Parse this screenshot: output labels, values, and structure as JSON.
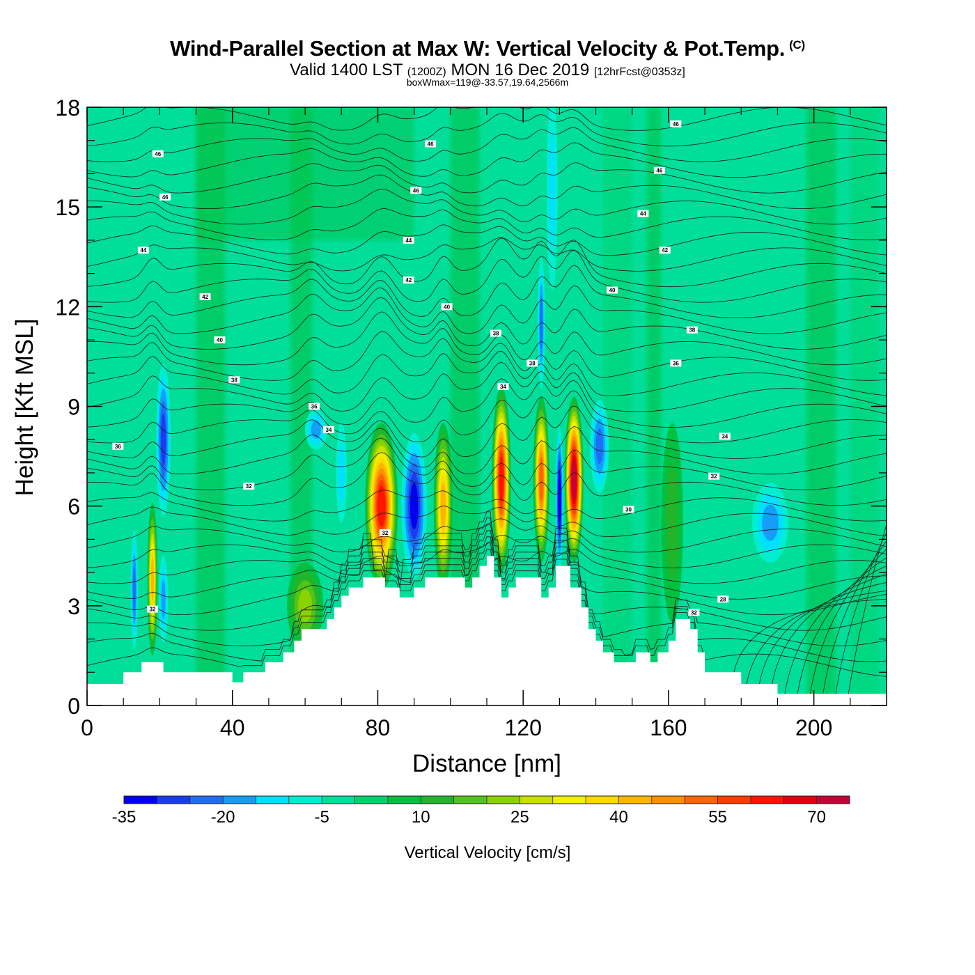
{
  "title": {
    "main": "Wind-Parallel Section at Max W: Vertical Velocity & Pot.Temp.",
    "copyright": "(C)",
    "valid_a": "Valid 1400 LST",
    "valid_z": "(1200Z)",
    "valid_b": "MON 16 Dec 2019",
    "valid_fcst": "[12hrFcst@0353z]",
    "box": "boxWmax=119@-33.57,19.64,2566m"
  },
  "chart_data": {
    "type": "heatmap",
    "description_fields": "filled contours of vertical velocity with overlaid potential temperature contour lines",
    "xlabel": "Distance [nm]",
    "ylabel": "Height [Kft MSL]",
    "xlim": [
      0,
      220
    ],
    "ylim": [
      0,
      18
    ],
    "x_ticks": [
      "0",
      "40",
      "80",
      "120",
      "160",
      "200"
    ],
    "y_ticks": [
      "0",
      "3",
      "6",
      "9",
      "12",
      "15",
      "18"
    ],
    "colorbar": {
      "label": "Vertical Velocity [cm/s]",
      "min": -35,
      "step": 5,
      "tick_labels": [
        "-35",
        "-20",
        "-5",
        "10",
        "25",
        "40",
        "55",
        "70"
      ],
      "colors": [
        "#0000ee",
        "#1a3cf0",
        "#1e6ef5",
        "#149ef7",
        "#00e0ff",
        "#00eed0",
        "#00e09a",
        "#00d26e",
        "#00c040",
        "#22b52c",
        "#50c41a",
        "#8ad200",
        "#c8e000",
        "#f0f000",
        "#ffd800",
        "#ffb400",
        "#ff9000",
        "#ff6400",
        "#ff3c00",
        "#ff1400",
        "#e00010",
        "#c80038"
      ]
    },
    "terrain": [
      [
        0,
        0.65
      ],
      [
        10,
        0.65
      ],
      [
        10,
        1
      ],
      [
        15,
        1
      ],
      [
        15,
        1.3
      ],
      [
        21,
        1.3
      ],
      [
        21,
        1
      ],
      [
        40,
        1
      ],
      [
        40,
        0.7
      ],
      [
        43,
        0.7
      ],
      [
        43,
        1
      ],
      [
        49,
        1
      ],
      [
        49,
        1.3
      ],
      [
        54,
        1.3
      ],
      [
        54,
        1.6
      ],
      [
        57,
        1.6
      ],
      [
        57,
        1.95
      ],
      [
        59,
        1.95
      ],
      [
        59,
        2.3
      ],
      [
        66,
        2.3
      ],
      [
        66,
        2.6
      ],
      [
        68,
        2.6
      ],
      [
        68,
        2.95
      ],
      [
        70,
        2.95
      ],
      [
        70,
        3.3
      ],
      [
        72,
        3.3
      ],
      [
        72,
        3.55
      ],
      [
        76,
        3.55
      ],
      [
        76,
        3.85
      ],
      [
        82,
        3.85
      ],
      [
        82,
        3.55
      ],
      [
        86,
        3.55
      ],
      [
        86,
        3.25
      ],
      [
        90,
        3.25
      ],
      [
        90,
        3.55
      ],
      [
        93,
        3.55
      ],
      [
        93,
        3.85
      ],
      [
        104,
        3.85
      ],
      [
        104,
        3.55
      ],
      [
        106,
        3.55
      ],
      [
        106,
        3.85
      ],
      [
        108,
        3.85
      ],
      [
        108,
        4.2
      ],
      [
        110,
        4.2
      ],
      [
        110,
        4.5
      ],
      [
        112,
        4.5
      ],
      [
        112,
        3.85
      ],
      [
        114,
        3.85
      ],
      [
        114,
        3.25
      ],
      [
        116,
        3.25
      ],
      [
        116,
        3.55
      ],
      [
        118,
        3.55
      ],
      [
        118,
        3.85
      ],
      [
        125,
        3.85
      ],
      [
        125,
        3.25
      ],
      [
        127,
        3.25
      ],
      [
        127,
        3.55
      ],
      [
        129,
        3.55
      ],
      [
        129,
        4.2
      ],
      [
        133,
        4.2
      ],
      [
        133,
        3.55
      ],
      [
        136,
        3.55
      ],
      [
        136,
        2.95
      ],
      [
        138,
        2.95
      ],
      [
        138,
        2.3
      ],
      [
        140,
        2.3
      ],
      [
        140,
        1.95
      ],
      [
        142,
        1.95
      ],
      [
        142,
        1.6
      ],
      [
        145,
        1.6
      ],
      [
        145,
        1.3
      ],
      [
        151,
        1.3
      ],
      [
        151,
        1.6
      ],
      [
        155,
        1.6
      ],
      [
        155,
        1.3
      ],
      [
        157,
        1.3
      ],
      [
        157,
        1.6
      ],
      [
        160,
        1.6
      ],
      [
        160,
        1.95
      ],
      [
        162,
        1.95
      ],
      [
        162,
        2.6
      ],
      [
        166,
        2.6
      ],
      [
        166,
        2.3
      ],
      [
        168,
        2.3
      ],
      [
        168,
        1.6
      ],
      [
        170,
        1.6
      ],
      [
        170,
        1
      ],
      [
        180,
        1
      ],
      [
        180,
        0.65
      ],
      [
        190,
        0.65
      ],
      [
        190,
        0.35
      ],
      [
        220,
        0.35
      ]
    ],
    "vv_features": [
      {
        "x": 18,
        "z": 3.8,
        "w": 1.4,
        "h": 2.3,
        "v": 38
      },
      {
        "x": 13,
        "z": 3.5,
        "w": 1.0,
        "h": 1.8,
        "v": -22
      },
      {
        "x": 21,
        "z": 8.0,
        "w": 2.0,
        "h": 2.3,
        "v": -24
      },
      {
        "x": 21,
        "z": 3.2,
        "w": 1.3,
        "h": 1.3,
        "v": -16
      },
      {
        "x": 63,
        "z": 8.3,
        "w": 3.0,
        "h": 0.6,
        "v": -14
      },
      {
        "x": 70,
        "z": 7.0,
        "w": 1.5,
        "h": 1.5,
        "v": -12
      },
      {
        "x": 81,
        "z": 6.0,
        "w": 4.5,
        "h": 2.5,
        "v": 58
      },
      {
        "x": 90,
        "z": 6.0,
        "w": 3.5,
        "h": 2.2,
        "v": -30
      },
      {
        "x": 98,
        "z": 6.0,
        "w": 2.6,
        "h": 2.5,
        "v": 40
      },
      {
        "x": 114,
        "z": 6.8,
        "w": 2.6,
        "h": 2.8,
        "v": 58
      },
      {
        "x": 125,
        "z": 6.8,
        "w": 2.2,
        "h": 2.5,
        "v": 48
      },
      {
        "x": 130,
        "z": 6.2,
        "w": 1.0,
        "h": 2.2,
        "v": -35
      },
      {
        "x": 134,
        "z": 6.8,
        "w": 2.6,
        "h": 2.5,
        "v": 72
      },
      {
        "x": 141,
        "z": 7.8,
        "w": 2.6,
        "h": 1.4,
        "v": -18
      },
      {
        "x": 125,
        "z": 11.5,
        "w": 1.0,
        "h": 2.0,
        "v": -20
      },
      {
        "x": 128,
        "z": 15.5,
        "w": 1.5,
        "h": 3.0,
        "v": -8
      },
      {
        "x": 161,
        "z": 5.5,
        "w": 3.0,
        "h": 3.0,
        "v": 12
      },
      {
        "x": 188,
        "z": 5.5,
        "w": 5.0,
        "h": 1.2,
        "v": -14
      },
      {
        "x": 60,
        "z": 3.0,
        "w": 5.0,
        "h": 1.3,
        "v": 20
      }
    ],
    "theta_labels": [
      {
        "label": "46",
        "x": 19.5,
        "z": 16.6
      },
      {
        "label": "46",
        "x": 21.5,
        "z": 15.3
      },
      {
        "label": "44",
        "x": 15.5,
        "z": 13.7
      },
      {
        "label": "42",
        "x": 32.5,
        "z": 12.3
      },
      {
        "label": "40",
        "x": 36.5,
        "z": 11.0
      },
      {
        "label": "38",
        "x": 40.5,
        "z": 9.8
      },
      {
        "label": "36",
        "x": 8.5,
        "z": 7.8
      },
      {
        "label": "32",
        "x": 44.5,
        "z": 6.6
      },
      {
        "label": "36",
        "x": 62.5,
        "z": 9.0
      },
      {
        "label": "34",
        "x": 66.5,
        "z": 8.3
      },
      {
        "label": "46",
        "x": 94.5,
        "z": 16.9
      },
      {
        "label": "46",
        "x": 90.5,
        "z": 15.5
      },
      {
        "label": "44",
        "x": 88.5,
        "z": 14.0
      },
      {
        "label": "42",
        "x": 88.5,
        "z": 12.8
      },
      {
        "label": "40",
        "x": 99.0,
        "z": 12.0
      },
      {
        "label": "38",
        "x": 112.5,
        "z": 11.2
      },
      {
        "label": "38",
        "x": 122.5,
        "z": 10.3
      },
      {
        "label": "34",
        "x": 114.5,
        "z": 9.6
      },
      {
        "label": "32",
        "x": 82.0,
        "z": 5.2
      },
      {
        "label": "32",
        "x": 18.0,
        "z": 2.9
      },
      {
        "label": "46",
        "x": 162.0,
        "z": 17.5
      },
      {
        "label": "46",
        "x": 157.5,
        "z": 16.1
      },
      {
        "label": "44",
        "x": 153.0,
        "z": 14.8
      },
      {
        "label": "42",
        "x": 159.0,
        "z": 13.7
      },
      {
        "label": "40",
        "x": 144.5,
        "z": 12.5
      },
      {
        "label": "38",
        "x": 166.5,
        "z": 11.3
      },
      {
        "label": "36",
        "x": 162.0,
        "z": 10.3
      },
      {
        "label": "34",
        "x": 175.5,
        "z": 8.1
      },
      {
        "label": "32",
        "x": 172.5,
        "z": 6.9
      },
      {
        "label": "30",
        "x": 149.0,
        "z": 5.9
      },
      {
        "label": "28",
        "x": 175.0,
        "z": 3.2
      },
      {
        "label": "32",
        "x": 167.0,
        "z": 2.8
      }
    ]
  }
}
